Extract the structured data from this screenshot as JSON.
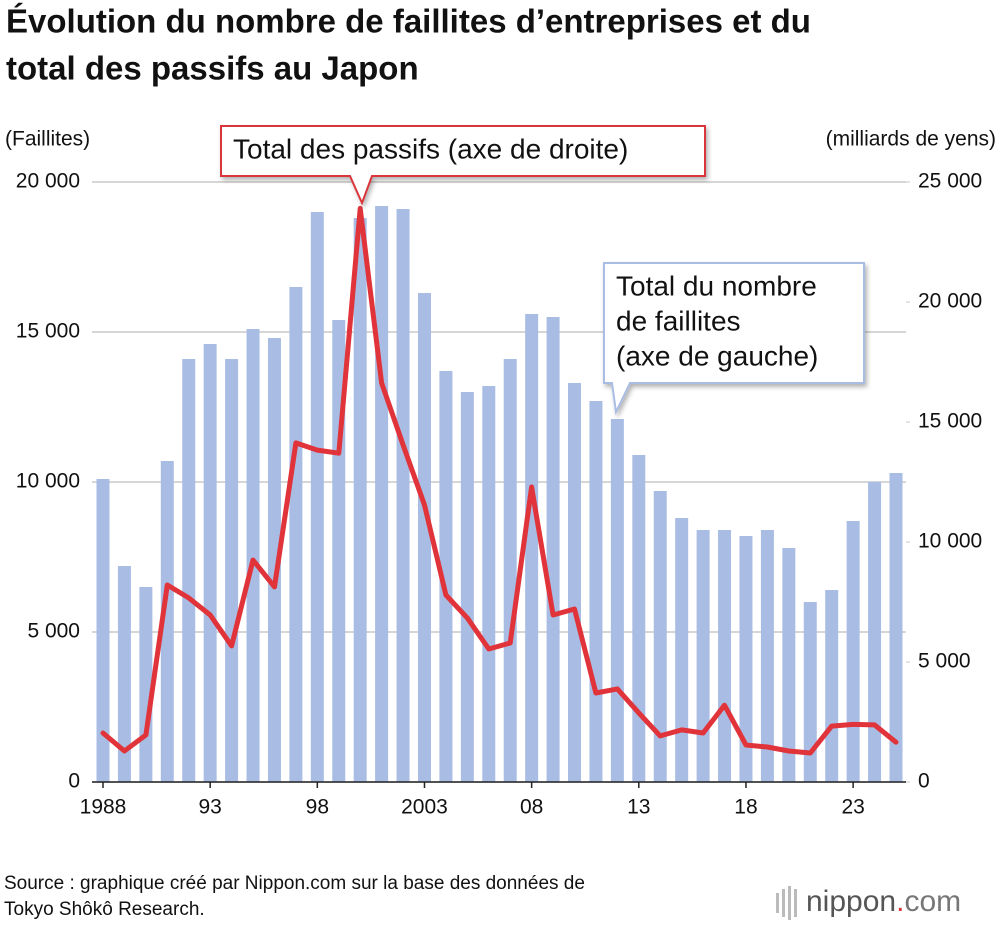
{
  "chart_data": {
    "type": "bar-line",
    "title": [
      "Évolution du nombre de faillites d’entreprises et du",
      "total des passifs au Japon"
    ],
    "y_label": "(Faillites)",
    "y2_label": "(milliards de yens)",
    "categories": [
      "1988",
      null,
      null,
      null,
      null,
      "93",
      null,
      null,
      null,
      null,
      "98",
      null,
      null,
      null,
      null,
      "2003",
      null,
      null,
      null,
      null,
      "08",
      null,
      null,
      null,
      null,
      "13",
      null,
      null,
      null,
      null,
      "18",
      null,
      null,
      null,
      null,
      "23",
      null,
      null
    ],
    "series": [
      {
        "type": "bar",
        "color": "#a9bde4",
        "values": [
          10100,
          7200,
          6500,
          10700,
          14100,
          14600,
          14100,
          15100,
          14800,
          16500,
          19000,
          15400,
          18800,
          19200,
          19100,
          16300,
          13700,
          13000,
          13200,
          14100,
          15600,
          15500,
          13300,
          12700,
          12100,
          10900,
          9700,
          8800,
          8400,
          8400,
          8200,
          8400,
          7800,
          6000,
          6400,
          8700,
          10000,
          10300
        ]
      },
      {
        "type": "line",
        "axis": "y2",
        "color": "#e0333a",
        "values": [
          2040,
          1290,
          1960,
          8210,
          7670,
          6960,
          5670,
          9250,
          8130,
          14130,
          13830,
          13700,
          23900,
          16630,
          14040,
          11540,
          7790,
          6830,
          5540,
          5790,
          12290,
          6960,
          7210,
          3710,
          3880,
          2880,
          1920,
          2170,
          2040,
          3200,
          1540,
          1460,
          1290,
          1210,
          2330,
          2400,
          2380,
          1660
        ]
      }
    ],
    "ylim": [
      0,
      20000
    ],
    "yticks": [
      0,
      {
        "value": 5000,
        "label": "5 000"
      },
      {
        "value": 10000,
        "label": "10 000"
      },
      {
        "value": 15000,
        "label": "15 000"
      },
      {
        "value": 20000,
        "label": "20 000"
      }
    ],
    "y2lim": [
      0,
      25000
    ],
    "y2ticks": [
      0,
      {
        "value": 5000,
        "label": "5 000"
      },
      {
        "value": 10000,
        "label": "10 000"
      },
      {
        "value": 15000,
        "label": "15 000"
      },
      {
        "value": 20000,
        "label": "20 000"
      },
      {
        "value": 25000,
        "label": "25 000"
      }
    ],
    "grid": true,
    "annotations": [
      {
        "lines": [
          "Total des passifs (axe de droite)"
        ],
        "border": "#d9343b"
      },
      {
        "lines": [
          "Total du nombre",
          "de faillites",
          "(axe de gauche)"
        ],
        "border": "#a9bde4"
      }
    ],
    "source": [
      "Source : graphique créé par Nippon.com sur la base des données de",
      "Tokyo Shôkô Research."
    ],
    "logo": [
      "nippon",
      ".",
      "com"
    ]
  }
}
